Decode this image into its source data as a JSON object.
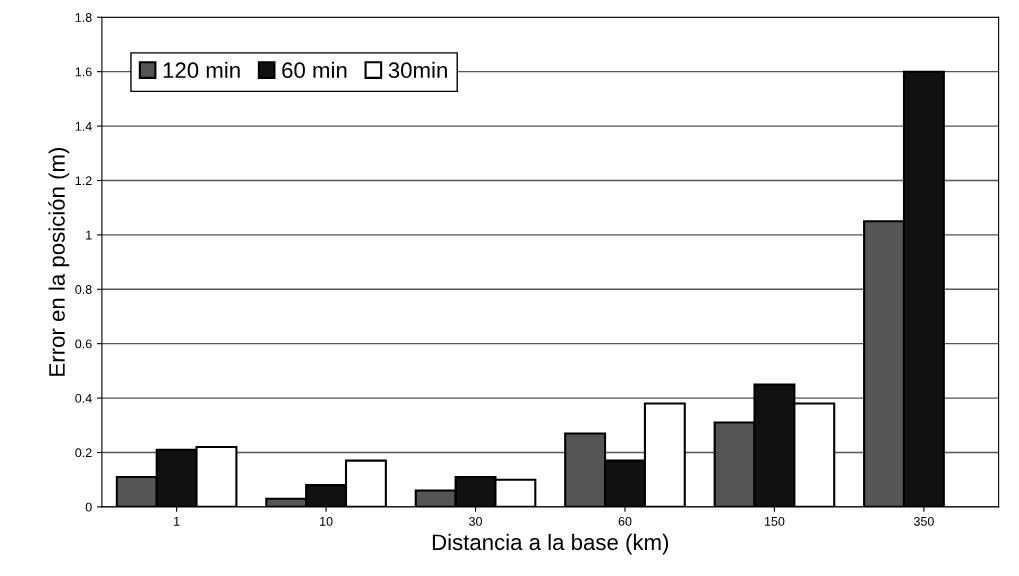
{
  "chart_data": {
    "type": "bar",
    "xlabel": "Distancia a la base (km)",
    "ylabel": "Error en la posición (m)",
    "categories": [
      "1",
      "10",
      "30",
      "60",
      "150",
      "350"
    ],
    "series": [
      {
        "name": "120 min",
        "color": "#555555",
        "values": [
          0.11,
          0.03,
          0.06,
          0.27,
          0.31,
          1.05
        ]
      },
      {
        "name": "60 min",
        "color": "#111111",
        "values": [
          0.21,
          0.08,
          0.11,
          0.17,
          0.45,
          1.6
        ]
      },
      {
        "name": "30min",
        "color": "#ffffff",
        "values": [
          0.22,
          0.17,
          0.1,
          0.38,
          0.38,
          null
        ]
      }
    ],
    "ylim": [
      0,
      1.8
    ],
    "yticks": [
      0,
      0.2,
      0.4,
      0.6,
      0.8,
      1,
      1.2,
      1.4,
      1.6,
      1.8
    ],
    "grid": "y",
    "legend": "top left"
  }
}
